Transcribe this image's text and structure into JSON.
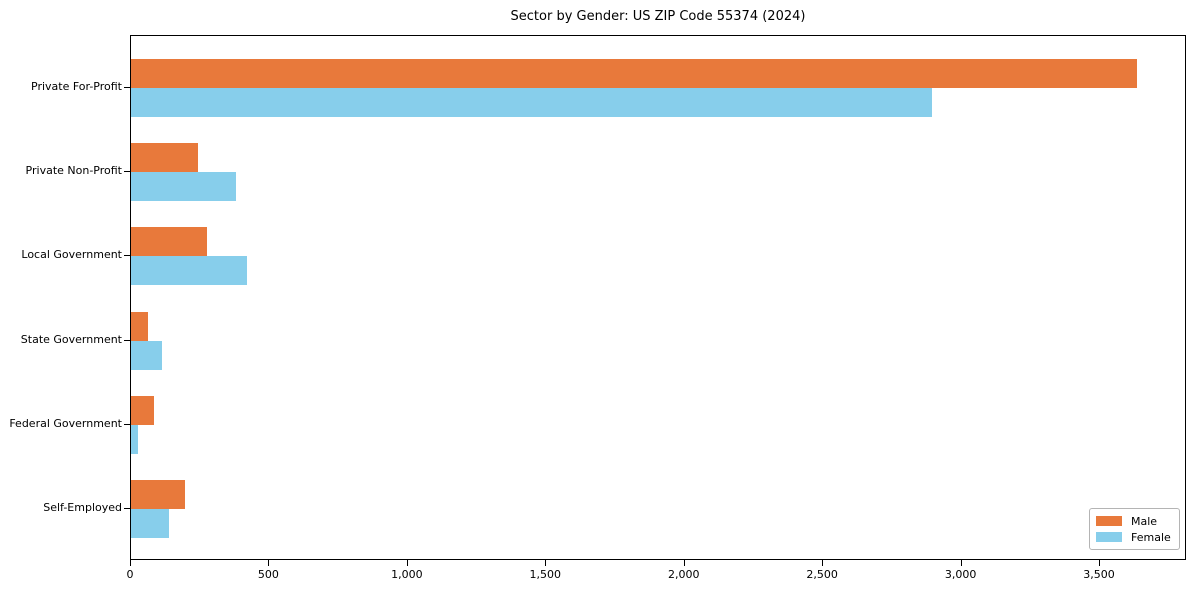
{
  "chart_data": {
    "type": "bar",
    "orientation": "horizontal",
    "title": "Sector by Gender: US ZIP Code 55374 (2024)",
    "categories": [
      "Private For-Profit",
      "Private Non-Profit",
      "Local Government",
      "State Government",
      "Federal Government",
      "Self-Employed"
    ],
    "series": [
      {
        "name": "Male",
        "color": "#e8793b",
        "values": [
          3634,
          242,
          275,
          61,
          83,
          195
        ]
      },
      {
        "name": "Female",
        "color": "#87ceeb",
        "values": [
          2894,
          379,
          419,
          112,
          25,
          137
        ]
      }
    ],
    "xlabel": "",
    "ylabel": "",
    "xlim": [
      0,
      3814
    ],
    "xticks": [
      0,
      500,
      1000,
      1500,
      2000,
      2500,
      3000,
      3500
    ],
    "xtick_labels": [
      "0",
      "500",
      "1,000",
      "1,500",
      "2,000",
      "2,500",
      "3,000",
      "3,500"
    ],
    "grid": false,
    "legend_position": "lower right",
    "colors": {
      "axis": "#000000",
      "background": "#ffffff",
      "legend_border": "#b4b4b4"
    }
  }
}
